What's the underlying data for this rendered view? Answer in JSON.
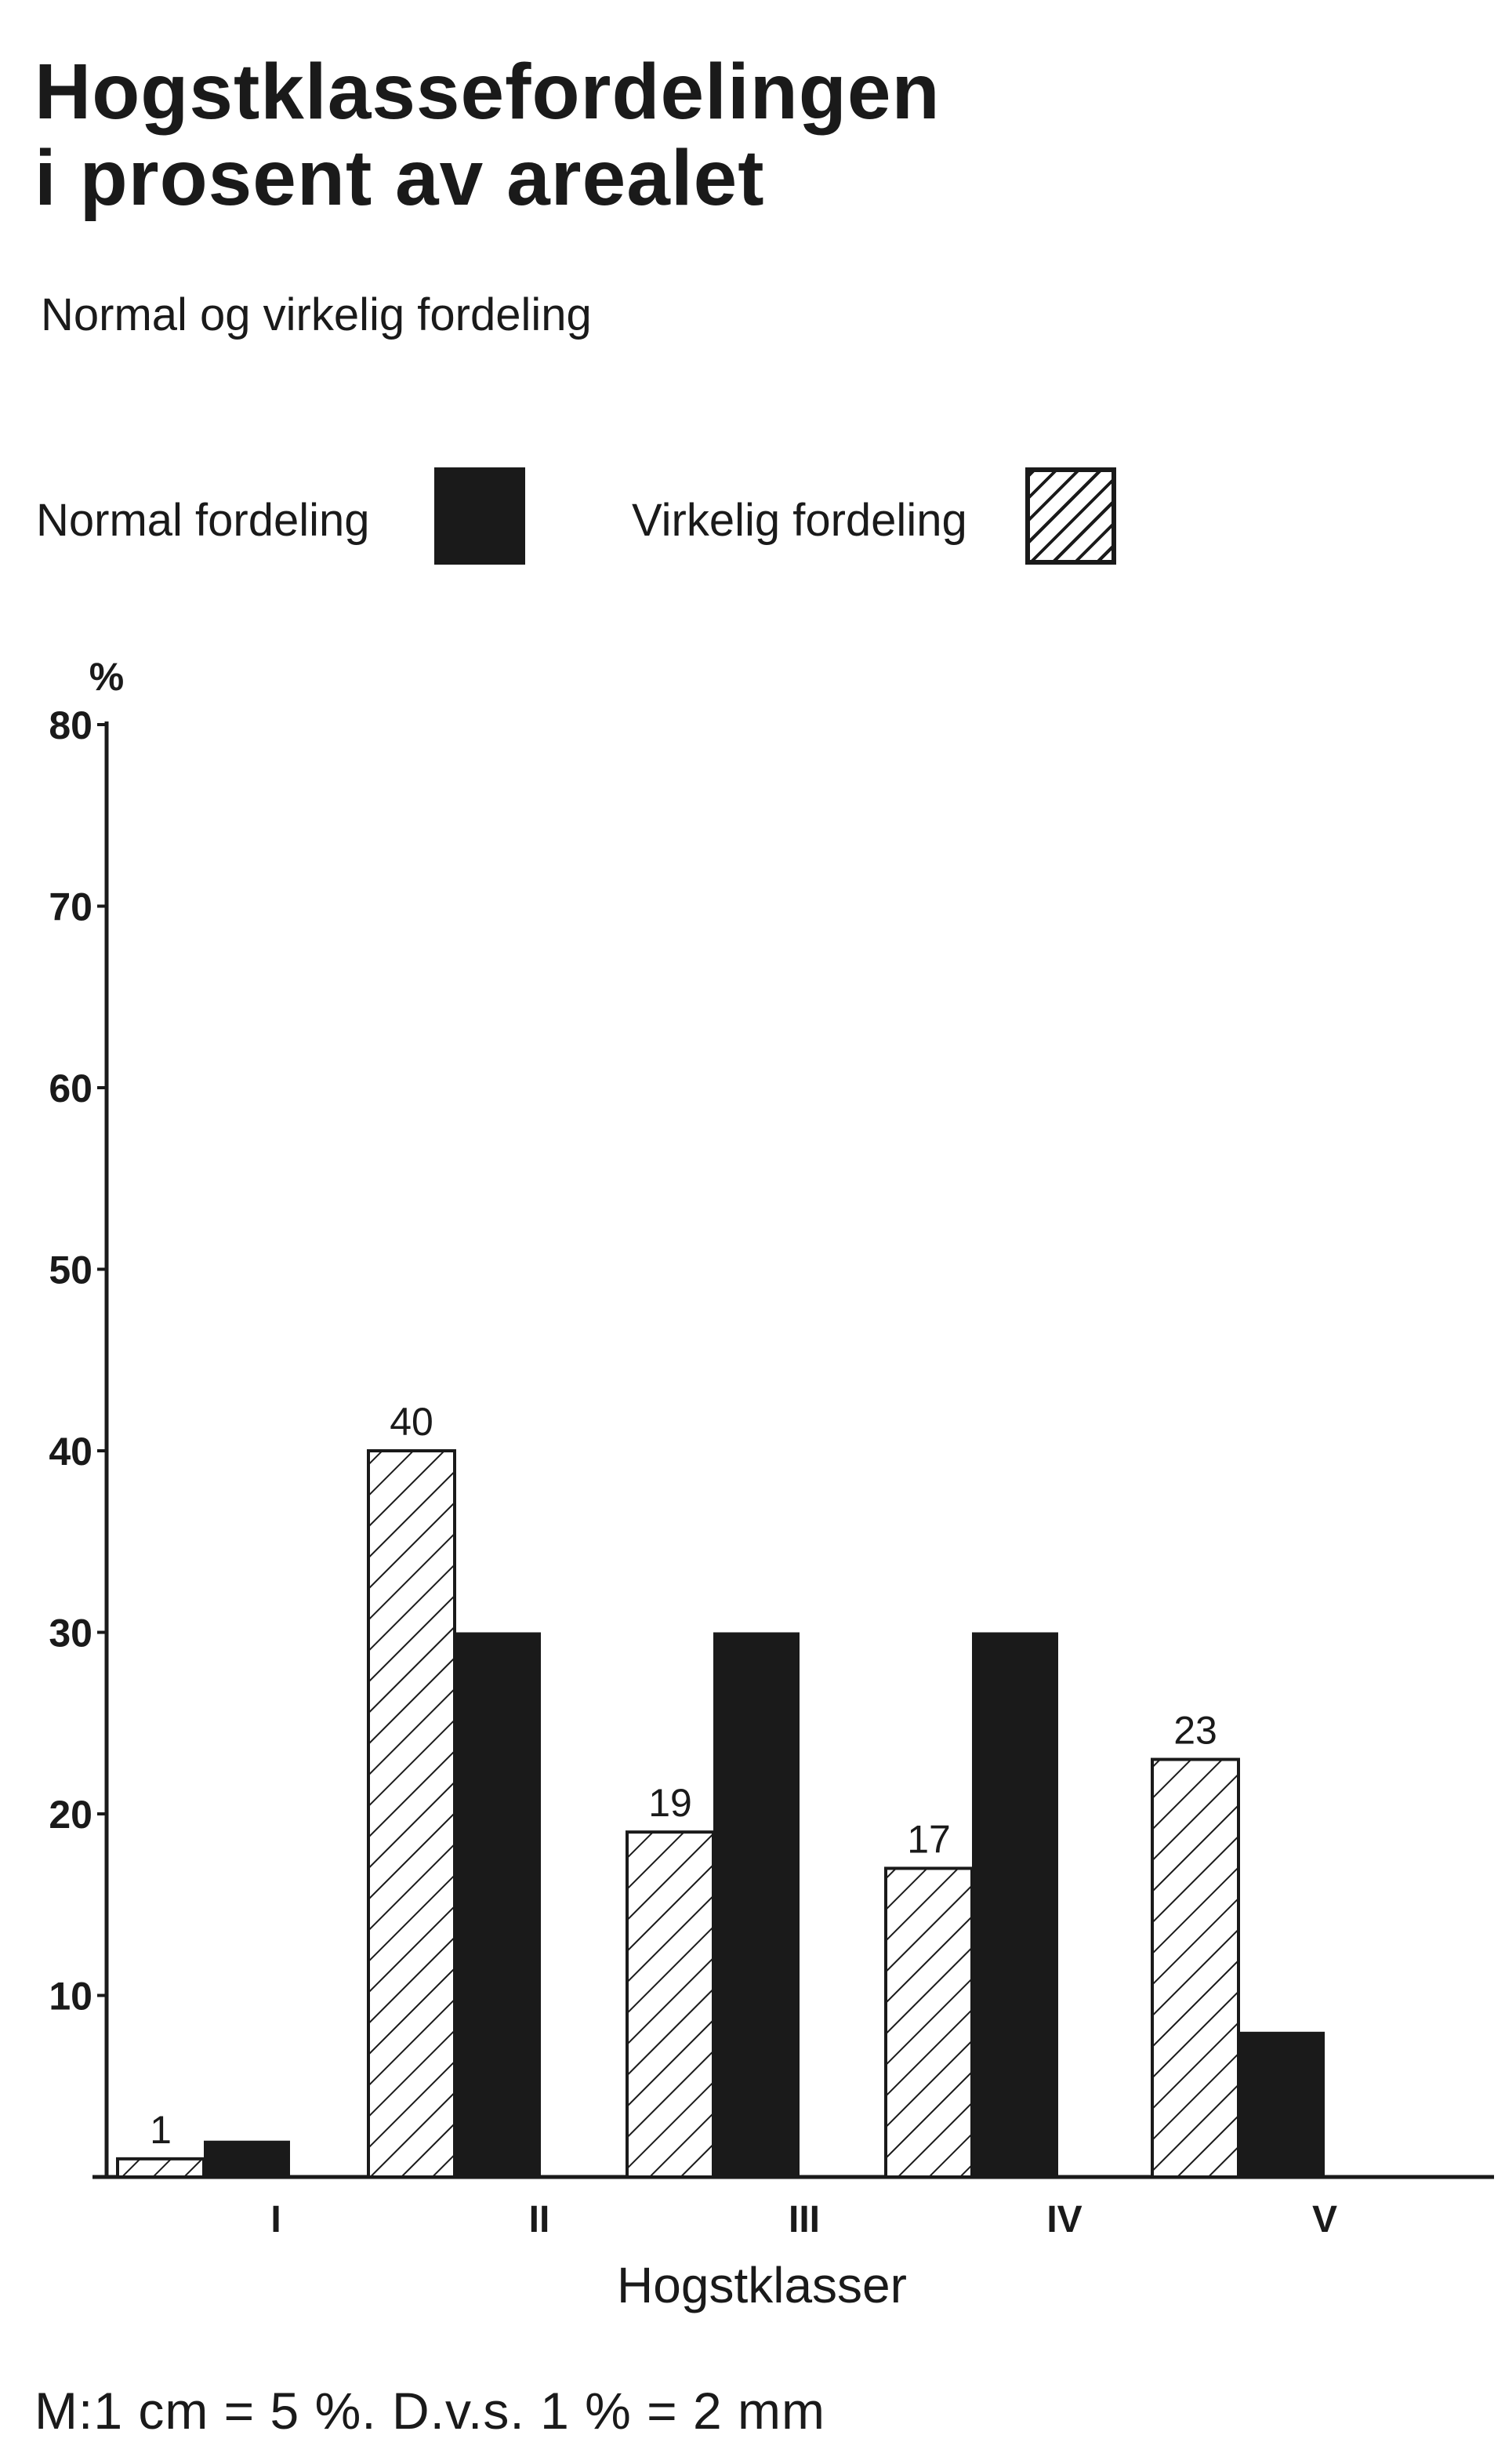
{
  "header": {
    "title_line1": "Hogstklassefordelingen",
    "title_line2": "i prosent av arealet",
    "subtitle": "Normal og virkelig fordeling"
  },
  "legend": {
    "normal_label": "Normal fordeling",
    "virkelig_label": "Virkelig fordeling"
  },
  "footer": {
    "note": "M:1 cm = 5 %. D.v.s. 1 % = 2 mm"
  },
  "colors": {
    "bar_fill": "#1a1a1a",
    "background": "#ffffff"
  },
  "chart_data": {
    "type": "bar",
    "title": "Hogstklassefordelingen i prosent av arealet",
    "subtitle": "Normal og virkelig fordeling",
    "xlabel": "Hogstklasser",
    "ylabel": "%",
    "categories": [
      "I",
      "II",
      "III",
      "IV",
      "V"
    ],
    "series": [
      {
        "name": "Virkelig fordeling",
        "pattern": "hatched",
        "values": [
          1,
          40,
          19,
          17,
          23
        ],
        "data_labels": [
          "1",
          "40",
          "19",
          "17",
          "23"
        ]
      },
      {
        "name": "Normal fordeling",
        "pattern": "solid",
        "values": [
          2,
          30,
          30,
          30,
          8
        ]
      }
    ],
    "ylim": [
      0,
      80
    ],
    "yticks": [
      10,
      20,
      30,
      40,
      50,
      60,
      70,
      80
    ],
    "grid": false,
    "legend_position": "top"
  }
}
